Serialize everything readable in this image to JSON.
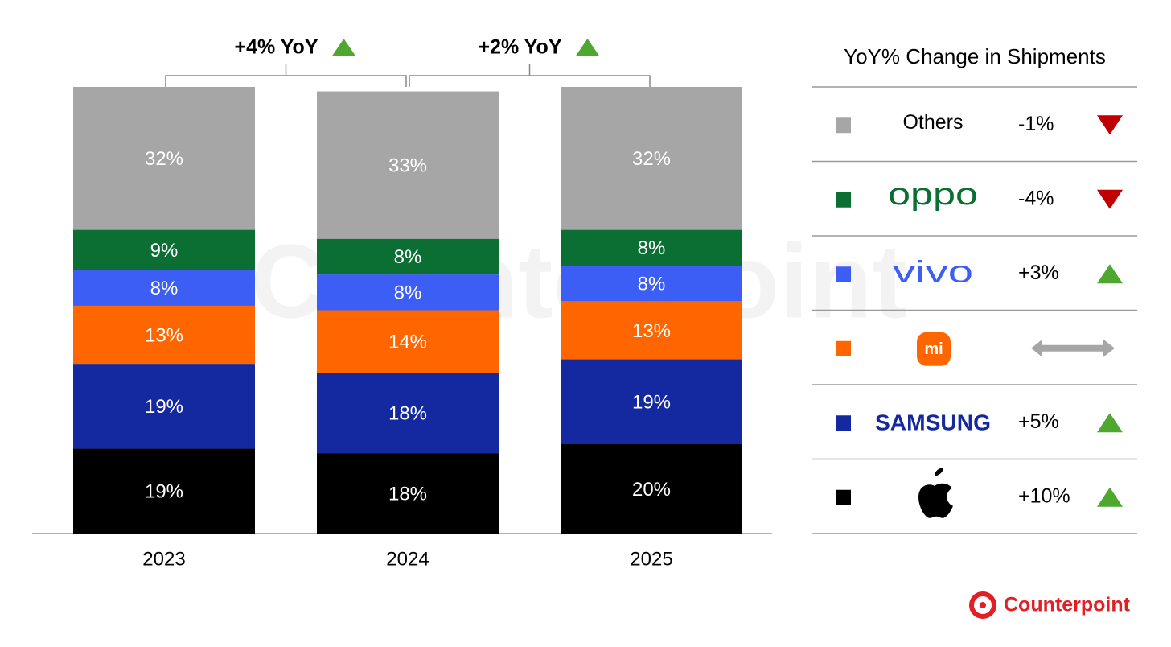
{
  "chart_data": {
    "type": "stacked_bar",
    "categories": [
      "2023",
      "2024",
      "2025"
    ],
    "ylim": [
      0,
      100
    ],
    "series": [
      {
        "color": "#000000",
        "values": [
          19,
          18,
          20
        ],
        "value_labels": [
          "19%",
          "18%",
          "20%"
        ],
        "yoy_change": 10,
        "yoy_label": "+10%"
      },
      {
        "name": "SAMSUNG",
        "color": "#1428a0",
        "values": [
          19,
          18,
          19
        ],
        "value_labels": [
          "19%",
          "18%",
          "19%"
        ],
        "yoy_change": 5,
        "yoy_label": "+5%"
      },
      {
        "name": "mi",
        "color": "#ff6600",
        "values": [
          13,
          14,
          13
        ],
        "value_labels": [
          "13%",
          "14%",
          "13%"
        ],
        "yoy_change": null
      },
      {
        "name": "vivo",
        "color": "#3d5ef5",
        "values": [
          8,
          8,
          8
        ],
        "value_labels": [
          "8%",
          "8%",
          "8%"
        ],
        "yoy_change": 3,
        "yoy_label": "+3%"
      },
      {
        "name": "oppo",
        "color": "#0b6e33",
        "values": [
          9,
          8,
          8
        ],
        "value_labels": [
          "9%",
          "8%",
          "8%"
        ],
        "yoy_change": -4,
        "yoy_label": "-4%"
      },
      {
        "name": "Others",
        "color": "#a6a6a6",
        "values": [
          32,
          33,
          32
        ],
        "value_labels": [
          "32%",
          "33%",
          "32%"
        ],
        "yoy_change": -1,
        "yoy_label": "-1%"
      }
    ],
    "annotations": [
      "+4% YoY",
      "+2% YoY"
    ],
    "legend_title": "YoY% Change in Shipments",
    "brand": "Counterpoint"
  }
}
